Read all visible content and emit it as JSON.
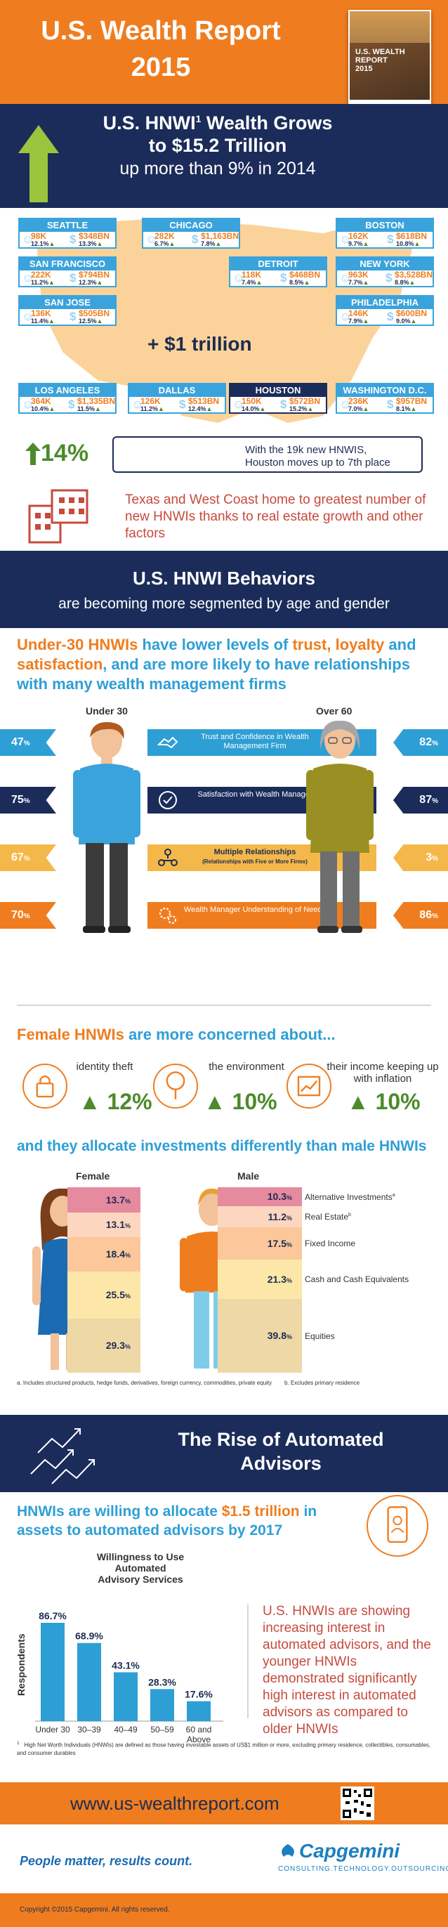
{
  "header": {
    "title_line1": "U.S. Wealth Report",
    "title_line2": "2015",
    "cover_line1": "U.S. WEALTH REPORT",
    "cover_line2": "2015"
  },
  "wealth": {
    "line1": "U.S. HNWI",
    "sup": "1",
    "line1b": " Wealth Grows",
    "line2": "to $15.2 Trillion",
    "line3": "up more than 9% in 2014"
  },
  "cities": [
    {
      "name": "SEATTLE",
      "hnwi": "98K",
      "hnwi_growth": "12.1%",
      "wealth": "$348BN",
      "wealth_growth": "13.3%"
    },
    {
      "name": "CHICAGO",
      "hnwi": "282K",
      "hnwi_growth": "6.7%",
      "wealth": "$1,163BN",
      "wealth_growth": "7.8%"
    },
    {
      "name": "BOSTON",
      "hnwi": "162K",
      "hnwi_growth": "9.7%",
      "wealth": "$618BN",
      "wealth_growth": "10.8%"
    },
    {
      "name": "SAN FRANCISCO",
      "hnwi": "222K",
      "hnwi_growth": "11.2%",
      "wealth": "$794BN",
      "wealth_growth": "12.3%"
    },
    {
      "name": "DETROIT",
      "hnwi": "118K",
      "hnwi_growth": "7.4%",
      "wealth": "$468BN",
      "wealth_growth": "8.5%"
    },
    {
      "name": "NEW YORK",
      "hnwi": "963K",
      "hnwi_growth": "7.7%",
      "wealth": "$3,528BN",
      "wealth_growth": "8.8%"
    },
    {
      "name": "SAN JOSE",
      "hnwi": "136K",
      "hnwi_growth": "11.4%",
      "wealth": "$505BN",
      "wealth_growth": "12.5%"
    },
    {
      "name": "PHILADELPHIA",
      "hnwi": "146K",
      "hnwi_growth": "7.9%",
      "wealth": "$600BN",
      "wealth_growth": "9.0%"
    },
    {
      "name": "LOS ANGELES",
      "hnwi": "364K",
      "hnwi_growth": "10.4%",
      "wealth": "$1,335BN",
      "wealth_growth": "11.5%"
    },
    {
      "name": "DALLAS",
      "hnwi": "126K",
      "hnwi_growth": "11.2%",
      "wealth": "$513BN",
      "wealth_growth": "12.4%"
    },
    {
      "name": "HOUSTON",
      "hnwi": "150K",
      "hnwi_growth": "14.0%",
      "wealth": "$572BN",
      "wealth_growth": "15.2%"
    },
    {
      "name": "WASHINGTON D.C.",
      "hnwi": "236K",
      "hnwi_growth": "7.0%",
      "wealth": "$957BN",
      "wealth_growth": "8.1%"
    }
  ],
  "map": {
    "trillion": "+ $1 trillion",
    "houston_pct": "14%",
    "houston_note1": "With the 19k new HNWIS,",
    "houston_note2": "Houston moves up to 7th place",
    "texas_note": "Texas and West Coast home to greatest number of new HNWIs thanks to real estate growth and other factors"
  },
  "behaviors": {
    "title": "U.S. HNWI Behaviors",
    "subtitle": "are becoming more segmented by age and gender"
  },
  "under30": {
    "head_a": "Under-30 HNWIs",
    "head_b": " have lower levels of ",
    "head_c": "trust, loyalty",
    "head_d": " and ",
    "head_e": "satisfaction",
    "head_f": ", and are more likely to have relationships with many wealth management firms",
    "col_under": "Under 30",
    "col_over": "Over 60",
    "rows": [
      {
        "label": "Trust and Confidence in Wealth Management Firm",
        "sub": "",
        "under": "47",
        "over": "82"
      },
      {
        "label": "Satisfaction with Wealth Manager",
        "sub": "",
        "under": "75",
        "over": "87"
      },
      {
        "label": "Multiple Relationships",
        "sub": "(Relationships with Five or More Firms)",
        "under": "67",
        "over": "3"
      },
      {
        "label": "Wealth Manager Understanding of Needs",
        "sub": "",
        "under": "70",
        "over": "86"
      }
    ],
    "pct_sign": "%"
  },
  "female": {
    "head_a": "Female HNWIs",
    "head_b": " are more concerned about...",
    "concerns": [
      {
        "label": "identity theft",
        "pct": "12%"
      },
      {
        "label": "the environment",
        "pct": "10%"
      },
      {
        "label": "their income keeping up with inflation",
        "pct": "10%"
      }
    ],
    "alloc_head": "and they allocate investments differently than male HNWIs",
    "label_female": "Female",
    "label_male": "Male",
    "categories": [
      "Alternative Investments",
      "Real Estate",
      "Fixed Income",
      "Cash and Cash Equivalents",
      "Equities"
    ],
    "cat_sups": [
      "a",
      "b",
      "",
      "",
      ""
    ],
    "female_vals": [
      "13.7",
      "13.1",
      "18.4",
      "25.5",
      "29.3"
    ],
    "male_vals": [
      "10.3",
      "11.2",
      "17.5",
      "21.3",
      "39.8"
    ],
    "footnote_a": "a.   Includes structured products, hedge funds, derivatives, foreign currency, commodities, private equity",
    "footnote_b": "b.   Excludes primary residence"
  },
  "chart_data": {
    "type": "bar",
    "title": "Willingness to Use Automated Advisory Services",
    "categories": [
      "Under 30",
      "30–39",
      "40–49",
      "50–59",
      "60 and Above"
    ],
    "values": [
      86.7,
      68.9,
      43.1,
      28.3,
      17.6
    ],
    "ylabel": "Respondents",
    "ylim": [
      0,
      100
    ],
    "color": "#2e9fd5"
  },
  "automated": {
    "title_l1": "The Rise of Automated",
    "title_l2": "Advisors",
    "head_a": "HNWIs are willing to allocate ",
    "head_b": "$1.5 trillion",
    "head_c": " in assets to automated advisors by 2017",
    "title_l1c": "Willingness to Use Automated",
    "title_l2c": "Advisory Services",
    "side_text": "U.S. HNWIs are showing increasing interest in automated advisors, and the younger HNWIs demonstrated significantly high interest in automated advisors as compared to older HNWIs",
    "footnote1_num": "1",
    "footnote1": "High Net Worth Individuals (HNWIs) are defined as those having investable assets of US$1 million or more, excluding primary residence, collectibles, consumables, and consumer durables"
  },
  "url": {
    "text": "www.us-wealthreport.com"
  },
  "footer": {
    "tagline": "People matter, results count.",
    "logo": "Capgemini",
    "logo_sub": "CONSULTING.TECHNOLOGY.OUTSOURCING",
    "copyright": "Copyright ©2015 Capgemini. All rights reserved."
  },
  "colors": {
    "orange": "#ef7d1f",
    "navy": "#1b2c5a",
    "blue": "#2e9fd5",
    "green": "#4c8b2b",
    "red": "#c64a3d",
    "yellow": "#f4b84a"
  }
}
